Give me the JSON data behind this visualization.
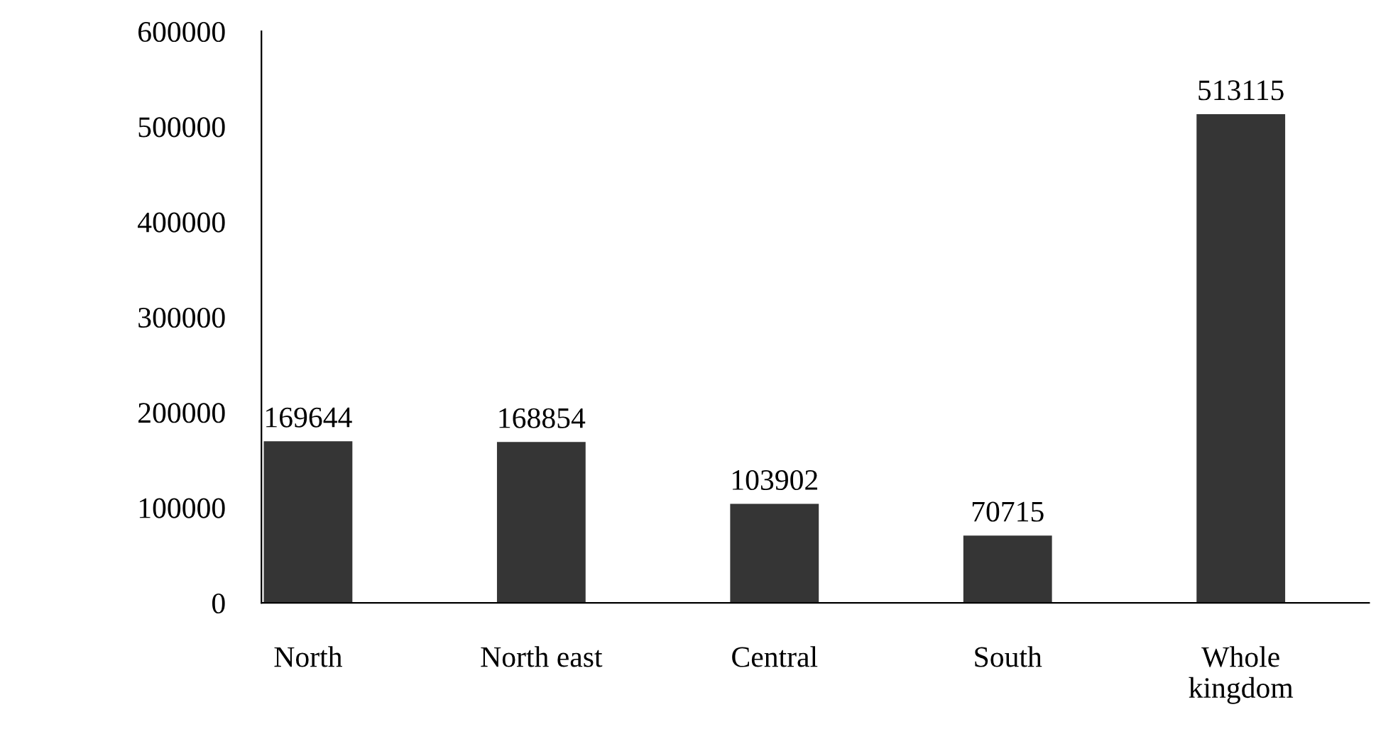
{
  "chart_data": {
    "type": "bar",
    "categories": [
      "North",
      "North east",
      "Central",
      "South",
      "Whole\nkingdom"
    ],
    "values": [
      169644,
      168854,
      103902,
      70715,
      513115
    ],
    "color": "#353535",
    "ylim": [
      0,
      600000
    ],
    "yticks": [
      0,
      100000,
      200000,
      300000,
      400000,
      500000,
      600000
    ],
    "grid": false,
    "data_labels": true
  }
}
